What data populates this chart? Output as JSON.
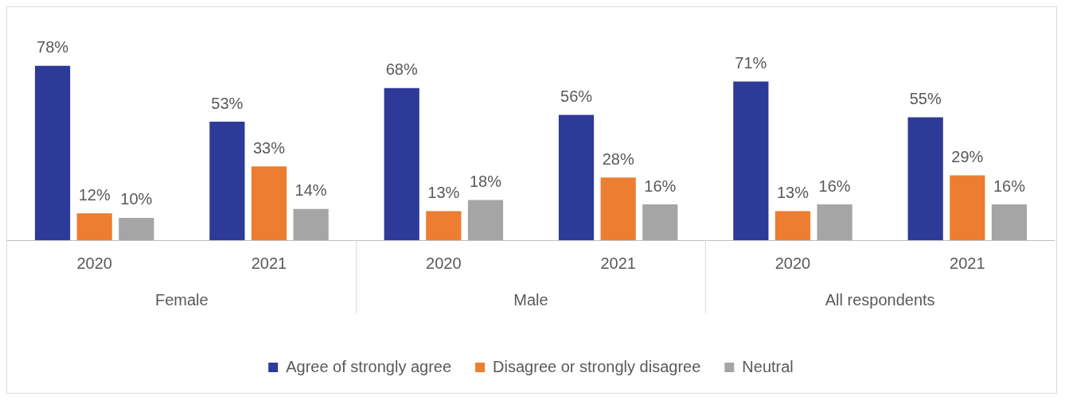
{
  "chart_data": {
    "type": "bar",
    "categories": [
      "2020",
      "2021",
      "2020",
      "2021",
      "2020",
      "2021"
    ],
    "annotations": [
      "Female",
      "Male",
      "All respondents"
    ],
    "series": [
      {
        "name": "Agree of strongly agree",
        "color": "#2e3a97",
        "values": [
          78,
          53,
          68,
          56,
          71,
          55
        ],
        "value_labels": [
          "78%",
          "53%",
          "68%",
          "56%",
          "71%",
          "55%"
        ]
      },
      {
        "name": "Disagree or strongly disagree",
        "color": "#ed7d31",
        "values": [
          12,
          33,
          13,
          28,
          13,
          29
        ],
        "value_labels": [
          "12%",
          "33%",
          "13%",
          "28%",
          "13%",
          "29%"
        ]
      },
      {
        "name": "Neutral",
        "color": "#a5a5a5",
        "values": [
          10,
          14,
          18,
          16,
          16,
          16
        ],
        "value_labels": [
          "10%",
          "14%",
          "18%",
          "16%",
          "16%",
          "16%"
        ]
      }
    ],
    "grid": false,
    "legend": "bottom"
  }
}
